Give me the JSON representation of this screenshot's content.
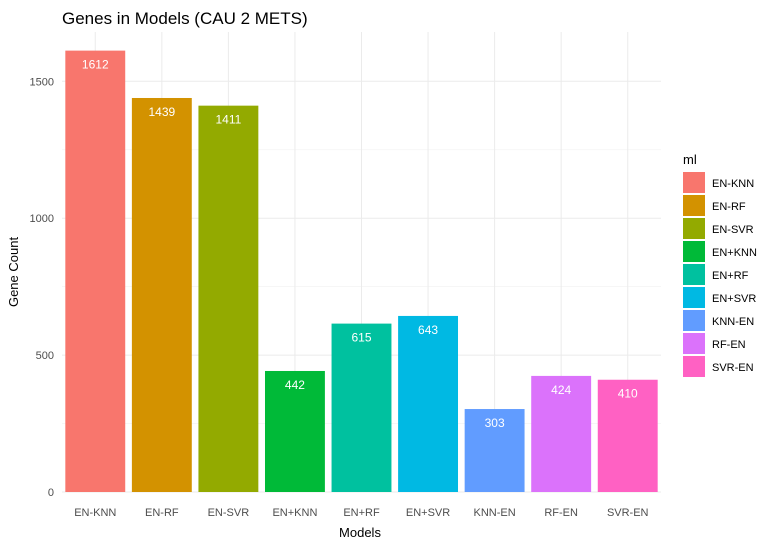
{
  "chart_data": {
    "type": "bar",
    "title": "Genes in Models (CAU 2 METS)",
    "xlabel": "Models",
    "ylabel": "Gene Count",
    "categories": [
      "EN-KNN",
      "EN-RF",
      "EN-SVR",
      "EN+KNN",
      "EN+RF",
      "EN+SVR",
      "KNN-EN",
      "RF-EN",
      "SVR-EN"
    ],
    "values": [
      1612,
      1439,
      1411,
      442,
      615,
      643,
      303,
      424,
      410
    ],
    "colors": [
      "#F8766D",
      "#D39200",
      "#93AA00",
      "#00BA38",
      "#00C19F",
      "#00B9E3",
      "#619CFF",
      "#DB72FB",
      "#FF61C3"
    ],
    "ylim": [
      0,
      1680
    ],
    "yticks": [
      0,
      500,
      1000,
      1500
    ],
    "grid": true,
    "legend": {
      "title": "ml",
      "position": "right",
      "entries": [
        "EN-KNN",
        "EN-RF",
        "EN-SVR",
        "EN+KNN",
        "EN+RF",
        "EN+SVR",
        "KNN-EN",
        "RF-EN",
        "SVR-EN"
      ]
    }
  }
}
